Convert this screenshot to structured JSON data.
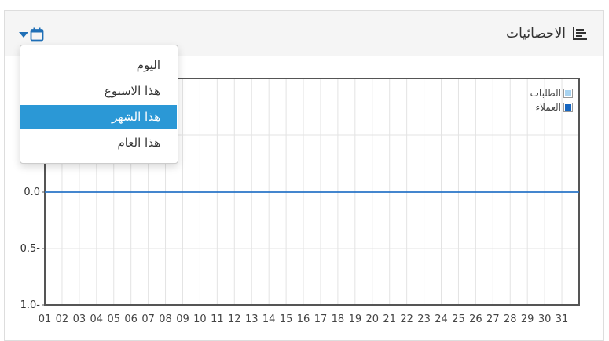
{
  "panel": {
    "title": "الاحصائيات",
    "title_icon": "bar-chart-icon",
    "calendar_icon": "calendar-icon",
    "caret_icon": "caret-down-icon"
  },
  "dropdown": {
    "items": [
      {
        "label": "اليوم",
        "active": false
      },
      {
        "label": "هذا الاسبوع",
        "active": false
      },
      {
        "label": "هذا الشهر",
        "active": true
      },
      {
        "label": "هذا العام",
        "active": false
      }
    ]
  },
  "colors": {
    "accent": "#2b98d6",
    "icon_blue": "#1f6fb6",
    "series_orders": "#a8d3f0",
    "series_customers": "#1565c0"
  },
  "chart_data": {
    "type": "line",
    "x": [
      "01",
      "02",
      "03",
      "04",
      "05",
      "06",
      "07",
      "08",
      "09",
      "10",
      "11",
      "12",
      "13",
      "14",
      "15",
      "16",
      "17",
      "18",
      "19",
      "20",
      "21",
      "22",
      "23",
      "24",
      "25",
      "26",
      "27",
      "28",
      "29",
      "30",
      "31"
    ],
    "yticks": [
      "1.0-",
      "0.5-",
      "0.0"
    ],
    "ylim": [
      -1.0,
      0.5
    ],
    "grid": true,
    "legend_position": "top-right",
    "series": [
      {
        "name": "الطلبات",
        "values": [
          0,
          0,
          0,
          0,
          0,
          0,
          0,
          0,
          0,
          0,
          0,
          0,
          0,
          0,
          0,
          0,
          0,
          0,
          0,
          0,
          0,
          0,
          0,
          0,
          0,
          0,
          0,
          0,
          0,
          0,
          0
        ]
      },
      {
        "name": "العملاء",
        "values": [
          0,
          0,
          0,
          0,
          0,
          0,
          0,
          0,
          0,
          0,
          0,
          0,
          0,
          0,
          0,
          0,
          0,
          0,
          0,
          0,
          0,
          0,
          0,
          0,
          0,
          0,
          0,
          0,
          0,
          0,
          0
        ]
      }
    ]
  }
}
